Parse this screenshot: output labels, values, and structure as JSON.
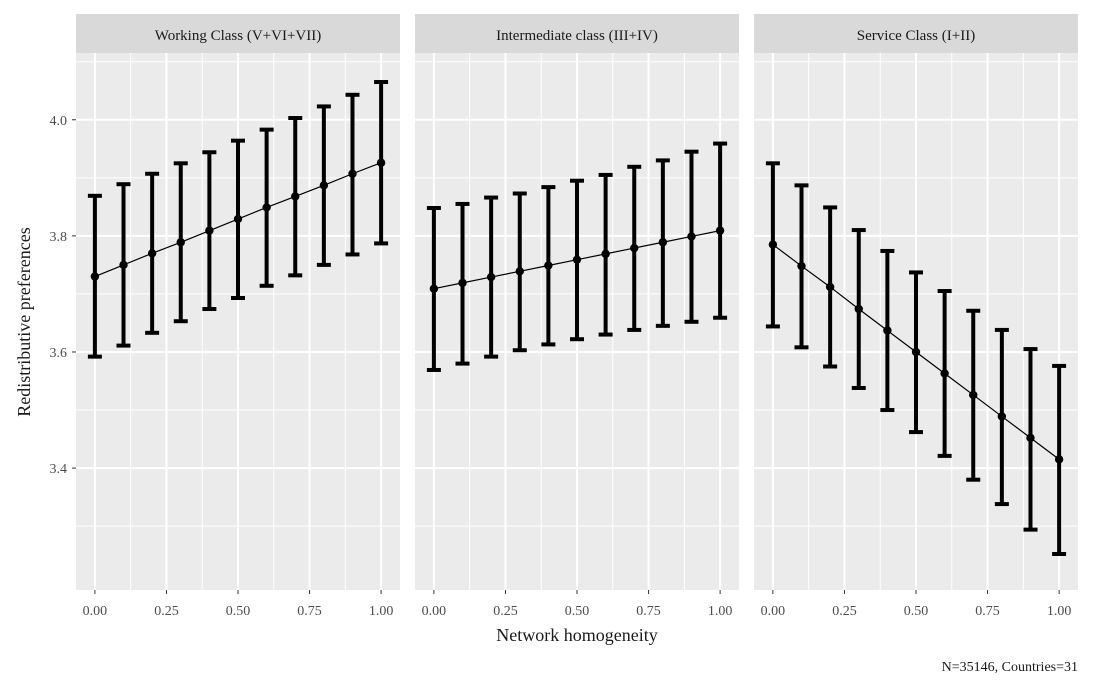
{
  "chart_data": {
    "type": "line",
    "xlabel": "Network homogeneity",
    "ylabel": "Redistributive preferences",
    "caption": "N=35146, Countries=31",
    "x": [
      0.0,
      0.1,
      0.2,
      0.3,
      0.4,
      0.5,
      0.6,
      0.7,
      0.8,
      0.9,
      1.0
    ],
    "xlim": [
      -0.066,
      1.066
    ],
    "ylim": [
      3.19,
      4.115
    ],
    "xticks": [
      0.0,
      0.25,
      0.5,
      0.75,
      1.0
    ],
    "xtick_labels": [
      "0.00",
      "0.25",
      "0.50",
      "0.75",
      "1.00"
    ],
    "yticks": [
      3.4,
      3.6,
      3.8,
      4.0
    ],
    "ytick_labels": [
      "3.4",
      "3.6",
      "3.8",
      "4.0"
    ],
    "grid": true,
    "error_bars": true,
    "panels": [
      {
        "title": "Working Class (V+VI+VII)",
        "estimate": [
          3.73,
          3.75,
          3.77,
          3.789,
          3.809,
          3.829,
          3.849,
          3.868,
          3.887,
          3.907,
          3.926
        ],
        "lower": [
          3.592,
          3.611,
          3.633,
          3.653,
          3.674,
          3.693,
          3.714,
          3.732,
          3.75,
          3.768,
          3.787
        ],
        "upper": [
          3.869,
          3.889,
          3.907,
          3.925,
          3.944,
          3.964,
          3.983,
          4.003,
          4.023,
          4.043,
          4.065
        ]
      },
      {
        "title": "Intermediate class (III+IV)",
        "estimate": [
          3.709,
          3.719,
          3.729,
          3.739,
          3.749,
          3.759,
          3.769,
          3.779,
          3.789,
          3.799,
          3.809
        ],
        "lower": [
          3.569,
          3.58,
          3.592,
          3.603,
          3.613,
          3.622,
          3.63,
          3.638,
          3.645,
          3.652,
          3.659
        ],
        "upper": [
          3.848,
          3.855,
          3.866,
          3.873,
          3.884,
          3.895,
          3.905,
          3.919,
          3.93,
          3.945,
          3.959
        ]
      },
      {
        "title": "Service Class (I+II)",
        "estimate": [
          3.785,
          3.748,
          3.712,
          3.674,
          3.637,
          3.6,
          3.563,
          3.526,
          3.489,
          3.452,
          3.415
        ],
        "lower": [
          3.644,
          3.608,
          3.575,
          3.538,
          3.5,
          3.462,
          3.421,
          3.38,
          3.338,
          3.294,
          3.252
        ],
        "upper": [
          3.925,
          3.887,
          3.849,
          3.81,
          3.774,
          3.737,
          3.705,
          3.671,
          3.638,
          3.605,
          3.576
        ]
      }
    ]
  }
}
